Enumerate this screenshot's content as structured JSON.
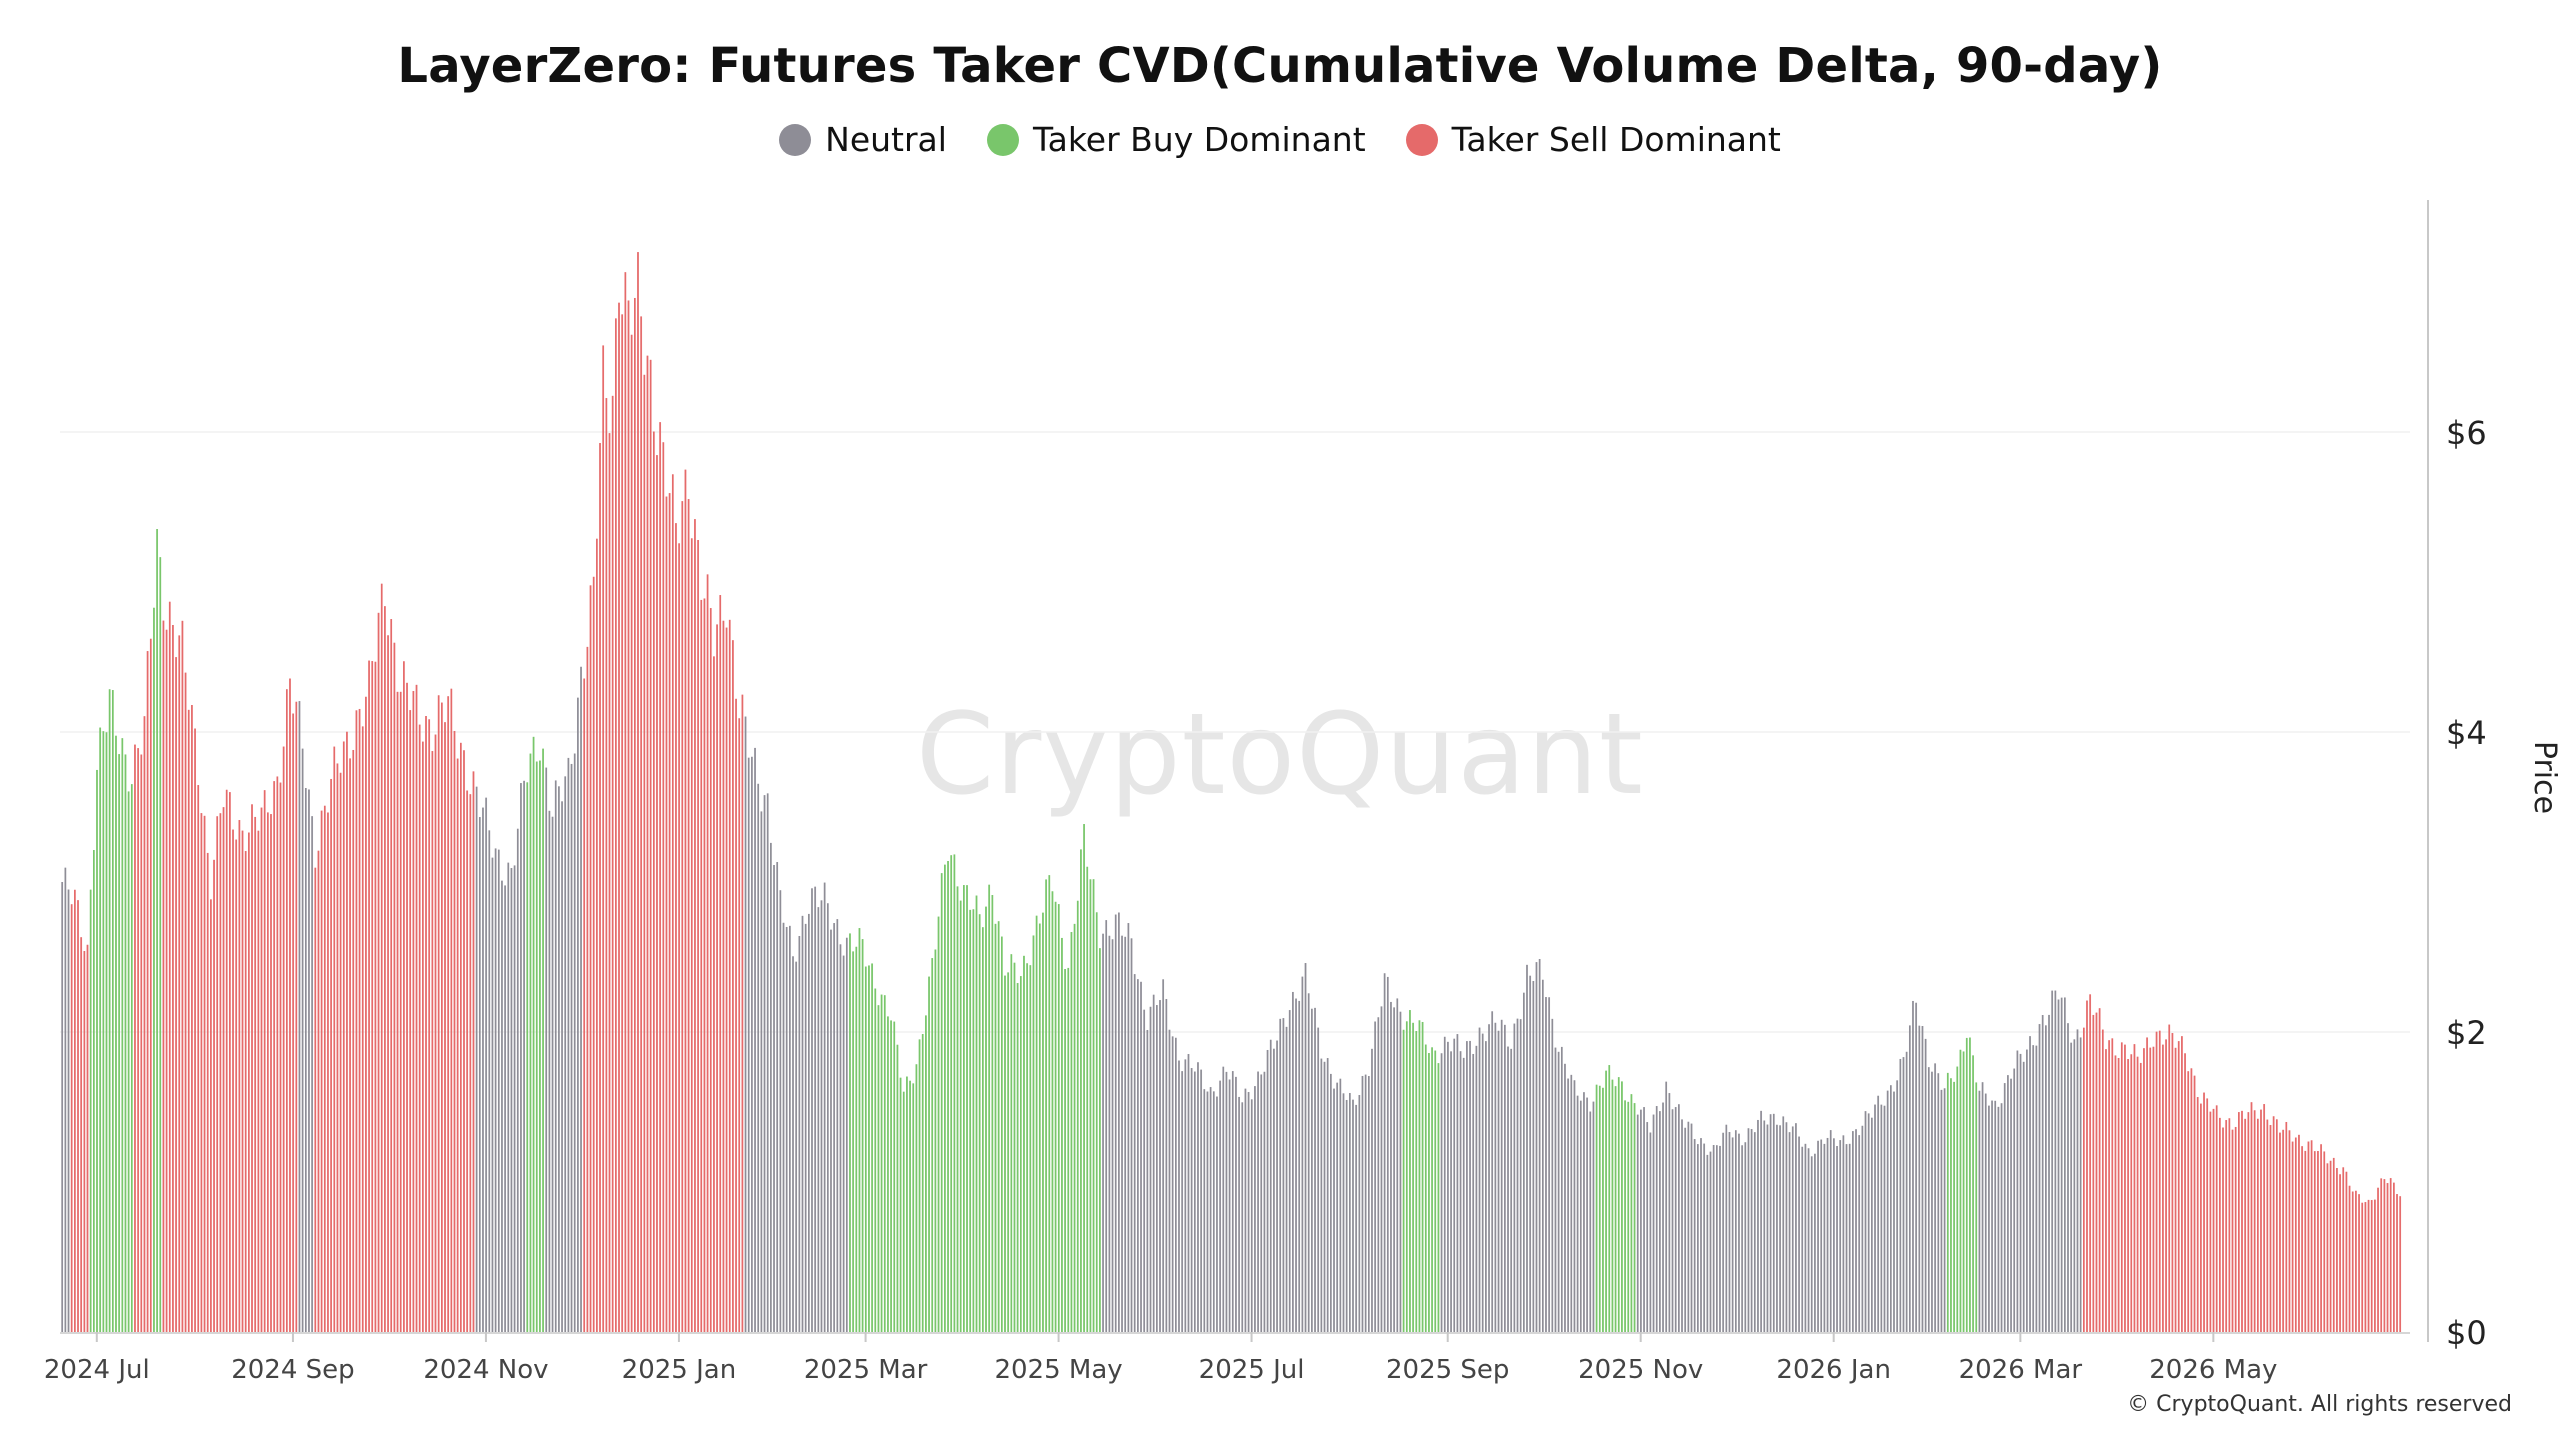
{
  "title": "LayerZero: Futures Taker CVD(Cumulative Volume Delta, 90-day)",
  "legend": [
    {
      "label": "Neutral",
      "color": "#8e8d96"
    },
    {
      "label": "Taker Buy Dominant",
      "color": "#79c66b"
    },
    {
      "label": "Taker Sell Dominant",
      "color": "#e56a6a"
    }
  ],
  "watermark": "CryptoQuant",
  "copyright": "© CryptoQuant. All rights reserved",
  "chart_data": {
    "type": "bar",
    "title": "LayerZero: Futures Taker CVD(Cumulative Volume Delta, 90-day)",
    "ylabel": "Price",
    "ylim": [
      0,
      7.5
    ],
    "y_ticks": [
      "$0",
      "$2",
      "$4",
      "$6"
    ],
    "y_tick_values": [
      0,
      2,
      4,
      6
    ],
    "x_ticks": [
      "2024 Jul",
      "2024 Sep",
      "2024 Nov",
      "2025 Jan",
      "2025 Mar",
      "2025 May",
      "2025 Jul",
      "2025 Sep",
      "2025 Nov",
      "2026 Jan",
      "2026 Mar",
      "2026 May"
    ],
    "x_tick_dates": [
      "2024-07-01",
      "2024-09-01",
      "2024-11-01",
      "2025-01-01",
      "2025-03-01",
      "2025-05-01",
      "2025-07-01",
      "2025-09-01",
      "2025-11-01",
      "2026-01-01",
      "2026-03-01",
      "2026-05-01"
    ],
    "x_range": [
      "2024-06-20",
      "2026-06-29"
    ],
    "grid": true,
    "legend_position": "top-center",
    "series": [
      {
        "name": "Price",
        "colors": {
          "neutral": "#8e8d96",
          "buy": "#79c66b",
          "sell": "#e56a6a"
        },
        "segments": [
          {
            "start": "2024-06-20",
            "end": "2024-06-22",
            "state": "neutral"
          },
          {
            "start": "2024-06-23",
            "end": "2024-06-28",
            "state": "sell"
          },
          {
            "start": "2024-06-29",
            "end": "2024-07-12",
            "state": "buy"
          },
          {
            "start": "2024-07-13",
            "end": "2024-07-18",
            "state": "sell"
          },
          {
            "start": "2024-07-19",
            "end": "2024-07-21",
            "state": "buy"
          },
          {
            "start": "2024-07-22",
            "end": "2024-09-02",
            "state": "sell"
          },
          {
            "start": "2024-09-03",
            "end": "2024-09-07",
            "state": "neutral"
          },
          {
            "start": "2024-09-08",
            "end": "2024-10-28",
            "state": "sell"
          },
          {
            "start": "2024-10-29",
            "end": "2024-11-13",
            "state": "neutral"
          },
          {
            "start": "2024-11-14",
            "end": "2024-11-19",
            "state": "buy"
          },
          {
            "start": "2024-11-20",
            "end": "2024-12-01",
            "state": "neutral"
          },
          {
            "start": "2024-12-02",
            "end": "2025-01-21",
            "state": "sell"
          },
          {
            "start": "2025-01-22",
            "end": "2025-02-23",
            "state": "neutral"
          },
          {
            "start": "2025-02-24",
            "end": "2025-05-14",
            "state": "buy"
          },
          {
            "start": "2025-05-15",
            "end": "2025-08-17",
            "state": "neutral"
          },
          {
            "start": "2025-08-18",
            "end": "2025-08-29",
            "state": "buy"
          },
          {
            "start": "2025-08-30",
            "end": "2025-10-17",
            "state": "neutral"
          },
          {
            "start": "2025-10-18",
            "end": "2025-10-30",
            "state": "buy"
          },
          {
            "start": "2025-10-31",
            "end": "2026-02-05",
            "state": "neutral"
          },
          {
            "start": "2026-02-06",
            "end": "2026-02-15",
            "state": "buy"
          },
          {
            "start": "2026-02-16",
            "end": "2026-03-20",
            "state": "neutral"
          },
          {
            "start": "2026-03-21",
            "end": "2026-06-29",
            "state": "sell"
          }
        ],
        "points": [
          [
            "2024-06-20",
            3.0
          ],
          [
            "2024-06-24",
            2.85
          ],
          [
            "2024-06-28",
            2.55
          ],
          [
            "2024-07-01",
            3.8
          ],
          [
            "2024-07-05",
            4.15
          ],
          [
            "2024-07-09",
            3.9
          ],
          [
            "2024-07-12",
            3.75
          ],
          [
            "2024-07-16",
            4.0
          ],
          [
            "2024-07-20",
            5.25
          ],
          [
            "2024-07-23",
            4.85
          ],
          [
            "2024-07-28",
            4.5
          ],
          [
            "2024-08-02",
            3.8
          ],
          [
            "2024-08-06",
            3.0
          ],
          [
            "2024-08-10",
            3.55
          ],
          [
            "2024-08-16",
            3.35
          ],
          [
            "2024-08-22",
            3.4
          ],
          [
            "2024-08-27",
            3.7
          ],
          [
            "2024-08-31",
            4.3
          ],
          [
            "2024-09-04",
            3.9
          ],
          [
            "2024-09-08",
            3.25
          ],
          [
            "2024-09-14",
            3.7
          ],
          [
            "2024-09-20",
            4.05
          ],
          [
            "2024-09-25",
            4.25
          ],
          [
            "2024-09-30",
            5.0
          ],
          [
            "2024-10-05",
            4.3
          ],
          [
            "2024-10-10",
            4.15
          ],
          [
            "2024-10-15",
            4.05
          ],
          [
            "2024-10-20",
            4.15
          ],
          [
            "2024-10-25",
            3.85
          ],
          [
            "2024-10-30",
            3.5
          ],
          [
            "2024-11-04",
            3.2
          ],
          [
            "2024-11-09",
            3.05
          ],
          [
            "2024-11-14",
            3.75
          ],
          [
            "2024-11-18",
            4.0
          ],
          [
            "2024-11-22",
            3.45
          ],
          [
            "2024-11-27",
            3.7
          ],
          [
            "2024-12-01",
            4.4
          ],
          [
            "2024-12-05",
            4.9
          ],
          [
            "2024-12-08",
            6.3
          ],
          [
            "2024-12-11",
            6.25
          ],
          [
            "2024-12-13",
            7.15
          ],
          [
            "2024-12-16",
            6.7
          ],
          [
            "2024-12-19",
            6.85
          ],
          [
            "2024-12-23",
            6.4
          ],
          [
            "2024-12-27",
            5.8
          ],
          [
            "2024-12-31",
            5.3
          ],
          [
            "2025-01-04",
            5.75
          ],
          [
            "2025-01-08",
            5.0
          ],
          [
            "2025-01-12",
            4.6
          ],
          [
            "2025-01-16",
            4.95
          ],
          [
            "2025-01-20",
            4.15
          ],
          [
            "2025-01-24",
            3.8
          ],
          [
            "2025-01-29",
            3.55
          ],
          [
            "2025-02-02",
            2.85
          ],
          [
            "2025-02-06",
            2.5
          ],
          [
            "2025-02-11",
            2.9
          ],
          [
            "2025-02-16",
            2.85
          ],
          [
            "2025-02-23",
            2.6
          ],
          [
            "2025-02-28",
            2.55
          ],
          [
            "2025-03-04",
            2.35
          ],
          [
            "2025-03-09",
            2.1
          ],
          [
            "2025-03-13",
            1.6
          ],
          [
            "2025-03-17",
            1.8
          ],
          [
            "2025-03-22",
            2.4
          ],
          [
            "2025-03-27",
            3.3
          ],
          [
            "2025-04-01",
            2.9
          ],
          [
            "2025-04-06",
            2.75
          ],
          [
            "2025-04-10",
            3.0
          ],
          [
            "2025-04-14",
            2.4
          ],
          [
            "2025-04-19",
            2.4
          ],
          [
            "2025-04-24",
            2.7
          ],
          [
            "2025-04-29",
            3.0
          ],
          [
            "2025-05-04",
            2.45
          ],
          [
            "2025-05-09",
            3.25
          ],
          [
            "2025-05-14",
            2.7
          ],
          [
            "2025-05-19",
            2.7
          ],
          [
            "2025-05-24",
            2.6
          ],
          [
            "2025-05-29",
            2.1
          ],
          [
            "2025-06-03",
            2.25
          ],
          [
            "2025-06-08",
            1.85
          ],
          [
            "2025-06-13",
            1.75
          ],
          [
            "2025-06-18",
            1.6
          ],
          [
            "2025-06-23",
            1.75
          ],
          [
            "2025-06-28",
            1.55
          ],
          [
            "2025-07-03",
            1.7
          ],
          [
            "2025-07-08",
            1.9
          ],
          [
            "2025-07-13",
            2.2
          ],
          [
            "2025-07-18",
            2.35
          ],
          [
            "2025-07-23",
            1.9
          ],
          [
            "2025-07-28",
            1.65
          ],
          [
            "2025-08-02",
            1.5
          ],
          [
            "2025-08-07",
            1.8
          ],
          [
            "2025-08-12",
            2.3
          ],
          [
            "2025-08-17",
            2.15
          ],
          [
            "2025-08-22",
            2.05
          ],
          [
            "2025-08-27",
            1.85
          ],
          [
            "2025-09-01",
            1.95
          ],
          [
            "2025-09-06",
            1.85
          ],
          [
            "2025-09-11",
            2.0
          ],
          [
            "2025-09-16",
            2.05
          ],
          [
            "2025-09-21",
            1.95
          ],
          [
            "2025-09-26",
            2.35
          ],
          [
            "2025-10-01",
            2.4
          ],
          [
            "2025-10-06",
            1.9
          ],
          [
            "2025-10-11",
            1.6
          ],
          [
            "2025-10-16",
            1.55
          ],
          [
            "2025-10-21",
            1.7
          ],
          [
            "2025-10-26",
            1.65
          ],
          [
            "2025-10-31",
            1.5
          ],
          [
            "2025-11-04",
            1.35
          ],
          [
            "2025-11-09",
            1.65
          ],
          [
            "2025-11-14",
            1.4
          ],
          [
            "2025-11-19",
            1.3
          ],
          [
            "2025-11-24",
            1.2
          ],
          [
            "2025-11-29",
            1.35
          ],
          [
            "2025-12-04",
            1.3
          ],
          [
            "2025-12-09",
            1.4
          ],
          [
            "2025-12-14",
            1.45
          ],
          [
            "2025-12-19",
            1.35
          ],
          [
            "2025-12-24",
            1.2
          ],
          [
            "2025-12-29",
            1.3
          ],
          [
            "2026-01-03",
            1.25
          ],
          [
            "2026-01-08",
            1.35
          ],
          [
            "2026-01-13",
            1.45
          ],
          [
            "2026-01-18",
            1.6
          ],
          [
            "2026-01-23",
            1.8
          ],
          [
            "2026-01-27",
            2.2
          ],
          [
            "2026-01-31",
            1.85
          ],
          [
            "2026-02-05",
            1.6
          ],
          [
            "2026-02-09",
            1.75
          ],
          [
            "2026-02-12",
            2.05
          ],
          [
            "2026-02-16",
            1.6
          ],
          [
            "2026-02-21",
            1.5
          ],
          [
            "2026-02-26",
            1.75
          ],
          [
            "2026-03-03",
            1.85
          ],
          [
            "2026-03-08",
            2.1
          ],
          [
            "2026-03-13",
            2.25
          ],
          [
            "2026-03-18",
            1.95
          ],
          [
            "2026-03-23",
            2.2
          ],
          [
            "2026-03-28",
            1.95
          ],
          [
            "2026-04-02",
            1.9
          ],
          [
            "2026-04-07",
            1.8
          ],
          [
            "2026-04-12",
            2.0
          ],
          [
            "2026-04-17",
            1.95
          ],
          [
            "2026-04-22",
            1.9
          ],
          [
            "2026-04-27",
            1.55
          ],
          [
            "2026-05-02",
            1.45
          ],
          [
            "2026-05-07",
            1.4
          ],
          [
            "2026-05-12",
            1.45
          ],
          [
            "2026-05-17",
            1.5
          ],
          [
            "2026-05-22",
            1.35
          ],
          [
            "2026-05-27",
            1.3
          ],
          [
            "2026-06-01",
            1.25
          ],
          [
            "2026-06-06",
            1.15
          ],
          [
            "2026-06-11",
            1.1
          ],
          [
            "2026-06-15",
            0.9
          ],
          [
            "2026-06-19",
            0.85
          ],
          [
            "2026-06-24",
            1.05
          ],
          [
            "2026-06-29",
            0.9
          ]
        ]
      }
    ]
  }
}
